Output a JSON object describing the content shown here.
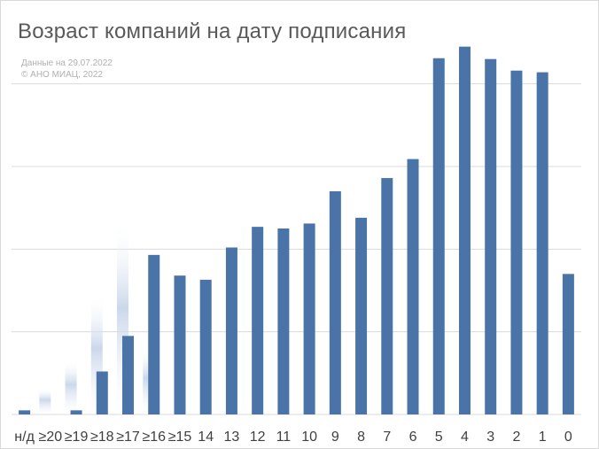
{
  "title": "Возраст компаний на дату подписания",
  "notes": {
    "date": "Данные на 29.07.2022",
    "copyright": "© АНО МИАЦ, 2022"
  },
  "colors": {
    "bar": "#4a73a8",
    "grid": "#d9d9d9",
    "text": "#595959",
    "ghost": "#c5d3e8"
  },
  "chart_data": {
    "type": "bar",
    "categories": [
      "н/д",
      "≥20",
      "≥19",
      "≥18",
      "≥17",
      "≥16",
      "≥15",
      "14",
      "13",
      "12",
      "11",
      "10",
      "9",
      "8",
      "7",
      "6",
      "5",
      "4",
      "3",
      "2",
      "1",
      "0"
    ],
    "values": [
      0.5,
      0,
      0.5,
      5.2,
      9.5,
      19.3,
      16.8,
      16.3,
      20.2,
      22.7,
      22.5,
      23.1,
      27.0,
      23.8,
      28.6,
      30.9,
      43.1,
      44.5,
      43.0,
      41.6,
      41.4,
      17.0
    ],
    "ghost_values": [
      0,
      3.2,
      6.6,
      14.6,
      23.4,
      8.0,
      0,
      0,
      0,
      0,
      0,
      0,
      0,
      0,
      0,
      0,
      0,
      0,
      0,
      0,
      0,
      0
    ],
    "ylim": [
      0,
      48
    ],
    "gridlines": [
      0,
      10,
      20,
      30,
      40
    ],
    "xlabel": "",
    "ylabel": "",
    "grid": true,
    "legend": "none"
  }
}
